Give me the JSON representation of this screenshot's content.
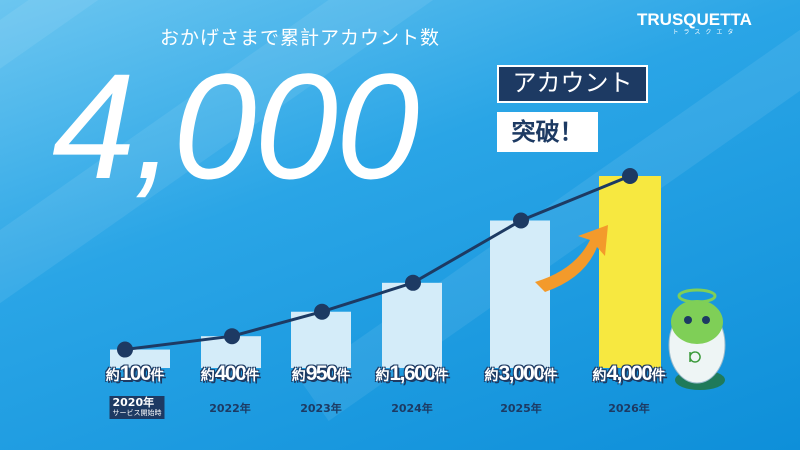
{
  "header": {
    "subtitle": "おかげさまで累計アカウント数",
    "headline": "4,000",
    "badge_account": "アカウント",
    "badge_breakthrough": "突破！"
  },
  "logo": {
    "text": "TRUSQUETTA",
    "kana": "トラスクエタ"
  },
  "colors": {
    "bar": "#d4ecf9",
    "bar_highlight": "#f7e840",
    "line": "#1d3a63",
    "background": "#2aa5e6"
  },
  "chart_data": {
    "type": "bar",
    "categories": [
      "2020年",
      "2022年",
      "2023年",
      "2024年",
      "2025年",
      "2026年"
    ],
    "category_notes": [
      "サービス開始時",
      "",
      "",
      "",
      "",
      ""
    ],
    "values": [
      100,
      400,
      950,
      1600,
      3000,
      4000
    ],
    "data_labels": [
      {
        "prefix": "約",
        "value": "100",
        "unit": "件"
      },
      {
        "prefix": "約",
        "value": "400",
        "unit": "件"
      },
      {
        "prefix": "約",
        "value": "950",
        "unit": "件"
      },
      {
        "prefix": "約",
        "value": "1,600",
        "unit": "件"
      },
      {
        "prefix": "約",
        "value": "3,000",
        "unit": "件"
      },
      {
        "prefix": "約",
        "value": "4,000",
        "unit": "件"
      }
    ],
    "overlay": "line",
    "highlight_index": 5,
    "grid": false
  }
}
